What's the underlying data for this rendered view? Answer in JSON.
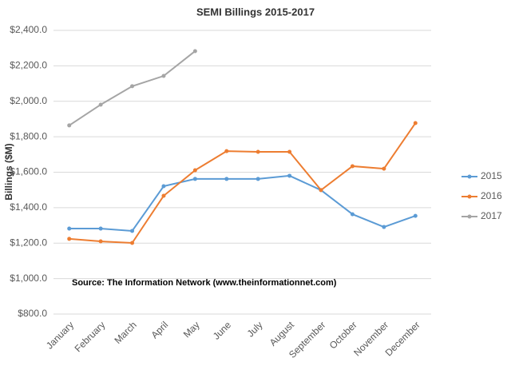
{
  "chart_data": {
    "type": "line",
    "title": "SEMI Billings 2015-2017",
    "y_label": "Billings ($M)",
    "annotation": "Source: The Information Network (www.theinformationnet.com)",
    "categories": [
      "January",
      "February",
      "March",
      "April",
      "May",
      "June",
      "July",
      "August",
      "September",
      "October",
      "November",
      "December"
    ],
    "series": [
      {
        "name": "2015",
        "color": "#5b9bd5",
        "values": [
          1282,
          1282,
          1269,
          1521,
          1562,
          1562,
          1562,
          1580,
          1499,
          1363,
          1291,
          1354
        ]
      },
      {
        "name": "2016",
        "color": "#ed7d31",
        "values": [
          1224,
          1210,
          1201,
          1467,
          1611,
          1719,
          1715,
          1715,
          1499,
          1634,
          1620,
          1877
        ]
      },
      {
        "name": "2017",
        "color": "#a5a5a5",
        "values": [
          1864,
          1981,
          2085,
          2143,
          2283,
          null,
          null,
          null,
          null,
          null,
          null,
          null
        ]
      }
    ],
    "ylim": [
      800,
      2400
    ],
    "yticks": [
      {
        "value": 800,
        "label": "$800.0"
      },
      {
        "value": 1000,
        "label": "$1,000.0"
      },
      {
        "value": 1200,
        "label": "$1,200.0"
      },
      {
        "value": 1400,
        "label": "$1,400.0"
      },
      {
        "value": 1600,
        "label": "$1,600.0"
      },
      {
        "value": 1800,
        "label": "$1,800.0"
      },
      {
        "value": 2000,
        "label": "$2,000.0"
      },
      {
        "value": 2200,
        "label": "$2,200.0"
      },
      {
        "value": 2400,
        "label": "$2,400.0"
      }
    ],
    "grid": true,
    "legend": "right"
  }
}
